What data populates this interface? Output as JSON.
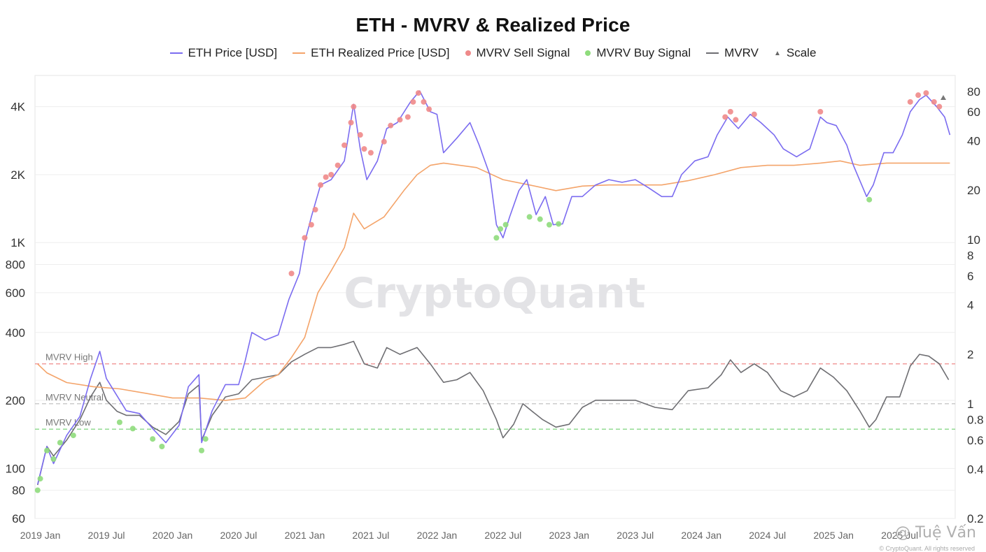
{
  "chart_data": {
    "type": "line",
    "title": "ETH - MVRV & Realized Price",
    "watermark": "CryptoQuant",
    "credit": "@ Tuệ Vấn",
    "rights": "© CryptoQuant. All rights reserved",
    "legend": [
      {
        "label": "ETH Price [USD]",
        "kind": "line",
        "color": "#7b6cf0"
      },
      {
        "label": "ETH Realized Price [USD]",
        "kind": "line",
        "color": "#f4a46a"
      },
      {
        "label": "MVRV Sell Signal",
        "kind": "dot",
        "color": "#ef8a8a"
      },
      {
        "label": "MVRV Buy Signal",
        "kind": "dot",
        "color": "#8fdc7c"
      },
      {
        "label": "MVRV",
        "kind": "line",
        "color": "#6e6e72"
      },
      {
        "label": "Scale",
        "kind": "triangle",
        "color": "#777777"
      }
    ],
    "x_ticks": [
      "2019 Jan",
      "2019 Jul",
      "2020 Jan",
      "2020 Jul",
      "2021 Jan",
      "2021 Jul",
      "2022 Jan",
      "2022 Jul",
      "2023 Jan",
      "2023 Jul",
      "2024 Jan",
      "2024 Jul",
      "2025 Jan",
      "2025 Jul"
    ],
    "x_range": [
      2018.96,
      2025.92
    ],
    "y_left": {
      "scale": "log",
      "range": [
        60,
        5500
      ],
      "ticks": [
        {
          "v": 60,
          "label": "60"
        },
        {
          "v": 80,
          "label": "80"
        },
        {
          "v": 100,
          "label": "100"
        },
        {
          "v": 200,
          "label": "200"
        },
        {
          "v": 400,
          "label": "400"
        },
        {
          "v": 600,
          "label": "600"
        },
        {
          "v": 800,
          "label": "800"
        },
        {
          "v": 1000,
          "label": "1K"
        },
        {
          "v": 2000,
          "label": "2K"
        },
        {
          "v": 4000,
          "label": "4K"
        }
      ]
    },
    "y_right": {
      "scale": "log",
      "range": [
        0.2,
        100
      ],
      "ticks": [
        {
          "v": 0.2,
          "label": "0.2"
        },
        {
          "v": 0.4,
          "label": "0.4"
        },
        {
          "v": 0.6,
          "label": "0.6"
        },
        {
          "v": 0.8,
          "label": "0.8"
        },
        {
          "v": 1,
          "label": "1"
        },
        {
          "v": 2,
          "label": "2"
        },
        {
          "v": 4,
          "label": "4"
        },
        {
          "v": 6,
          "label": "6"
        },
        {
          "v": 8,
          "label": "8"
        },
        {
          "v": 10,
          "label": "10"
        },
        {
          "v": 20,
          "label": "20"
        },
        {
          "v": 40,
          "label": "40"
        },
        {
          "v": 60,
          "label": "60"
        },
        {
          "v": 80,
          "label": "80"
        }
      ]
    },
    "mvrv_bands": [
      {
        "label": "MVRV High",
        "value": 1.75,
        "color": "#ef8a8a"
      },
      {
        "label": "MVRV Neutral",
        "value": 1.0,
        "color": "#bbbbbb"
      },
      {
        "label": "MVRV Low",
        "value": 0.7,
        "color": "#6fcf6f"
      }
    ],
    "eth_price": [
      [
        2018.98,
        85
      ],
      [
        2019.05,
        125
      ],
      [
        2019.1,
        105
      ],
      [
        2019.2,
        140
      ],
      [
        2019.3,
        170
      ],
      [
        2019.38,
        250
      ],
      [
        2019.45,
        330
      ],
      [
        2019.5,
        250
      ],
      [
        2019.58,
        210
      ],
      [
        2019.65,
        180
      ],
      [
        2019.75,
        175
      ],
      [
        2019.85,
        150
      ],
      [
        2019.95,
        130
      ],
      [
        2020.05,
        155
      ],
      [
        2020.12,
        230
      ],
      [
        2020.2,
        260
      ],
      [
        2020.22,
        130
      ],
      [
        2020.3,
        180
      ],
      [
        2020.4,
        235
      ],
      [
        2020.5,
        235
      ],
      [
        2020.55,
        300
      ],
      [
        2020.6,
        400
      ],
      [
        2020.7,
        370
      ],
      [
        2020.8,
        390
      ],
      [
        2020.88,
        560
      ],
      [
        2020.96,
        730
      ],
      [
        2021.0,
        1000
      ],
      [
        2021.05,
        1300
      ],
      [
        2021.12,
        1800
      ],
      [
        2021.2,
        1900
      ],
      [
        2021.3,
        2300
      ],
      [
        2021.37,
        4100
      ],
      [
        2021.42,
        2600
      ],
      [
        2021.47,
        1900
      ],
      [
        2021.55,
        2300
      ],
      [
        2021.62,
        3200
      ],
      [
        2021.7,
        3400
      ],
      [
        2021.8,
        4200
      ],
      [
        2021.87,
        4700
      ],
      [
        2021.95,
        3800
      ],
      [
        2022.0,
        3700
      ],
      [
        2022.05,
        2500
      ],
      [
        2022.15,
        2900
      ],
      [
        2022.25,
        3400
      ],
      [
        2022.32,
        2700
      ],
      [
        2022.4,
        2000
      ],
      [
        2022.45,
        1200
      ],
      [
        2022.5,
        1050
      ],
      [
        2022.55,
        1300
      ],
      [
        2022.62,
        1700
      ],
      [
        2022.68,
        1900
      ],
      [
        2022.75,
        1330
      ],
      [
        2022.82,
        1600
      ],
      [
        2022.88,
        1200
      ],
      [
        2022.95,
        1210
      ],
      [
        2023.02,
        1600
      ],
      [
        2023.1,
        1600
      ],
      [
        2023.2,
        1800
      ],
      [
        2023.3,
        1900
      ],
      [
        2023.4,
        1850
      ],
      [
        2023.5,
        1900
      ],
      [
        2023.6,
        1750
      ],
      [
        2023.7,
        1600
      ],
      [
        2023.78,
        1600
      ],
      [
        2023.85,
        2000
      ],
      [
        2023.95,
        2300
      ],
      [
        2024.05,
        2400
      ],
      [
        2024.12,
        3000
      ],
      [
        2024.2,
        3600
      ],
      [
        2024.28,
        3200
      ],
      [
        2024.37,
        3700
      ],
      [
        2024.45,
        3400
      ],
      [
        2024.55,
        3000
      ],
      [
        2024.62,
        2600
      ],
      [
        2024.72,
        2400
      ],
      [
        2024.82,
        2600
      ],
      [
        2024.9,
        3600
      ],
      [
        2024.95,
        3400
      ],
      [
        2025.02,
        3300
      ],
      [
        2025.1,
        2700
      ],
      [
        2025.15,
        2200
      ],
      [
        2025.25,
        1600
      ],
      [
        2025.3,
        1800
      ],
      [
        2025.38,
        2500
      ],
      [
        2025.45,
        2500
      ],
      [
        2025.52,
        3000
      ],
      [
        2025.58,
        3800
      ],
      [
        2025.65,
        4300
      ],
      [
        2025.7,
        4500
      ],
      [
        2025.78,
        4000
      ],
      [
        2025.84,
        3600
      ],
      [
        2025.88,
        3000
      ]
    ],
    "realized_price": [
      [
        2018.98,
        290
      ],
      [
        2019.05,
        265
      ],
      [
        2019.2,
        240
      ],
      [
        2019.4,
        230
      ],
      [
        2019.6,
        225
      ],
      [
        2019.8,
        215
      ],
      [
        2020.0,
        205
      ],
      [
        2020.2,
        205
      ],
      [
        2020.4,
        200
      ],
      [
        2020.55,
        205
      ],
      [
        2020.7,
        245
      ],
      [
        2020.8,
        260
      ],
      [
        2020.9,
        310
      ],
      [
        2021.0,
        380
      ],
      [
        2021.1,
        600
      ],
      [
        2021.2,
        750
      ],
      [
        2021.3,
        950
      ],
      [
        2021.37,
        1350
      ],
      [
        2021.45,
        1150
      ],
      [
        2021.6,
        1300
      ],
      [
        2021.75,
        1700
      ],
      [
        2021.85,
        2000
      ],
      [
        2021.95,
        2200
      ],
      [
        2022.05,
        2250
      ],
      [
        2022.3,
        2150
      ],
      [
        2022.5,
        1900
      ],
      [
        2022.7,
        1800
      ],
      [
        2022.9,
        1700
      ],
      [
        2023.1,
        1780
      ],
      [
        2023.3,
        1800
      ],
      [
        2023.5,
        1800
      ],
      [
        2023.7,
        1800
      ],
      [
        2023.9,
        1880
      ],
      [
        2024.1,
        2000
      ],
      [
        2024.3,
        2150
      ],
      [
        2024.5,
        2200
      ],
      [
        2024.7,
        2200
      ],
      [
        2024.9,
        2250
      ],
      [
        2025.05,
        2300
      ],
      [
        2025.2,
        2200
      ],
      [
        2025.4,
        2250
      ],
      [
        2025.6,
        2250
      ],
      [
        2025.88,
        2250
      ]
    ],
    "mvrv": [
      [
        2018.98,
        0.32
      ],
      [
        2019.05,
        0.55
      ],
      [
        2019.1,
        0.48
      ],
      [
        2019.2,
        0.6
      ],
      [
        2019.3,
        0.8
      ],
      [
        2019.38,
        1.1
      ],
      [
        2019.45,
        1.35
      ],
      [
        2019.5,
        1.05
      ],
      [
        2019.58,
        0.9
      ],
      [
        2019.65,
        0.85
      ],
      [
        2019.75,
        0.85
      ],
      [
        2019.85,
        0.72
      ],
      [
        2019.95,
        0.65
      ],
      [
        2020.05,
        0.78
      ],
      [
        2020.12,
        1.15
      ],
      [
        2020.2,
        1.3
      ],
      [
        2020.22,
        0.6
      ],
      [
        2020.3,
        0.85
      ],
      [
        2020.4,
        1.1
      ],
      [
        2020.5,
        1.15
      ],
      [
        2020.6,
        1.4
      ],
      [
        2020.7,
        1.45
      ],
      [
        2020.8,
        1.5
      ],
      [
        2020.9,
        1.8
      ],
      [
        2021.0,
        2.0
      ],
      [
        2021.1,
        2.2
      ],
      [
        2021.2,
        2.2
      ],
      [
        2021.3,
        2.3
      ],
      [
        2021.37,
        2.4
      ],
      [
        2021.45,
        1.75
      ],
      [
        2021.55,
        1.65
      ],
      [
        2021.62,
        2.2
      ],
      [
        2021.72,
        2.0
      ],
      [
        2021.85,
        2.2
      ],
      [
        2021.95,
        1.75
      ],
      [
        2022.05,
        1.35
      ],
      [
        2022.15,
        1.4
      ],
      [
        2022.25,
        1.55
      ],
      [
        2022.35,
        1.2
      ],
      [
        2022.45,
        0.8
      ],
      [
        2022.5,
        0.62
      ],
      [
        2022.58,
        0.75
      ],
      [
        2022.65,
        1.0
      ],
      [
        2022.72,
        0.9
      ],
      [
        2022.8,
        0.8
      ],
      [
        2022.9,
        0.72
      ],
      [
        2023.0,
        0.75
      ],
      [
        2023.1,
        0.95
      ],
      [
        2023.2,
        1.05
      ],
      [
        2023.35,
        1.05
      ],
      [
        2023.5,
        1.05
      ],
      [
        2023.65,
        0.95
      ],
      [
        2023.78,
        0.92
      ],
      [
        2023.9,
        1.2
      ],
      [
        2024.05,
        1.25
      ],
      [
        2024.15,
        1.5
      ],
      [
        2024.22,
        1.85
      ],
      [
        2024.3,
        1.55
      ],
      [
        2024.4,
        1.75
      ],
      [
        2024.5,
        1.55
      ],
      [
        2024.6,
        1.2
      ],
      [
        2024.7,
        1.1
      ],
      [
        2024.8,
        1.2
      ],
      [
        2024.9,
        1.65
      ],
      [
        2025.0,
        1.45
      ],
      [
        2025.1,
        1.2
      ],
      [
        2025.2,
        0.9
      ],
      [
        2025.27,
        0.72
      ],
      [
        2025.32,
        0.8
      ],
      [
        2025.4,
        1.1
      ],
      [
        2025.5,
        1.1
      ],
      [
        2025.58,
        1.7
      ],
      [
        2025.65,
        2.0
      ],
      [
        2025.72,
        1.95
      ],
      [
        2025.8,
        1.75
      ],
      [
        2025.87,
        1.4
      ]
    ],
    "sell_signals": [
      [
        2020.9,
        730
      ],
      [
        2021.0,
        1050
      ],
      [
        2021.05,
        1200
      ],
      [
        2021.08,
        1400
      ],
      [
        2021.12,
        1800
      ],
      [
        2021.16,
        1950
      ],
      [
        2021.2,
        2000
      ],
      [
        2021.25,
        2200
      ],
      [
        2021.3,
        2700
      ],
      [
        2021.35,
        3400
      ],
      [
        2021.37,
        4000
      ],
      [
        2021.42,
        3000
      ],
      [
        2021.45,
        2600
      ],
      [
        2021.5,
        2500
      ],
      [
        2021.6,
        2800
      ],
      [
        2021.65,
        3300
      ],
      [
        2021.72,
        3500
      ],
      [
        2021.78,
        3600
      ],
      [
        2021.82,
        4200
      ],
      [
        2021.86,
        4600
      ],
      [
        2021.9,
        4200
      ],
      [
        2021.94,
        3900
      ],
      [
        2024.18,
        3600
      ],
      [
        2024.22,
        3800
      ],
      [
        2024.26,
        3500
      ],
      [
        2024.4,
        3700
      ],
      [
        2024.9,
        3800
      ],
      [
        2025.58,
        4200
      ],
      [
        2025.64,
        4500
      ],
      [
        2025.7,
        4600
      ],
      [
        2025.76,
        4200
      ],
      [
        2025.8,
        4000
      ]
    ],
    "buy_signals": [
      [
        2018.98,
        80
      ],
      [
        2019.0,
        90
      ],
      [
        2019.05,
        120
      ],
      [
        2019.1,
        110
      ],
      [
        2019.15,
        130
      ],
      [
        2019.25,
        140
      ],
      [
        2019.6,
        160
      ],
      [
        2019.7,
        150
      ],
      [
        2019.85,
        135
      ],
      [
        2019.92,
        125
      ],
      [
        2020.22,
        120
      ],
      [
        2020.25,
        135
      ],
      [
        2022.45,
        1050
      ],
      [
        2022.48,
        1150
      ],
      [
        2022.52,
        1200
      ],
      [
        2022.7,
        1300
      ],
      [
        2022.78,
        1270
      ],
      [
        2022.85,
        1200
      ],
      [
        2022.92,
        1210
      ],
      [
        2025.27,
        1550
      ]
    ]
  }
}
